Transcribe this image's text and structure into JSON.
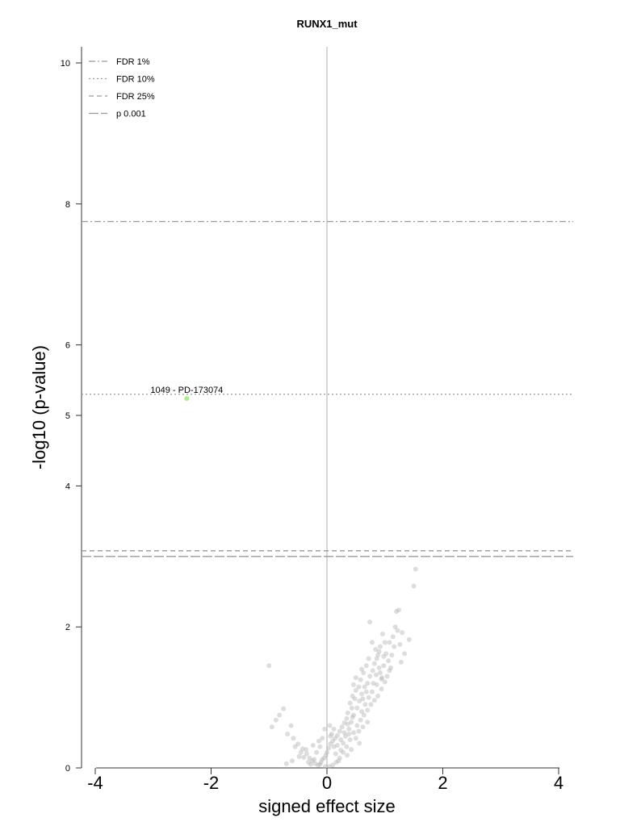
{
  "chart_data": {
    "type": "scatter",
    "title": "RUNX1_mut",
    "xlabel": "signed effect size",
    "ylabel": "-log10 (p-value)",
    "xlim": [
      -4.25,
      4.2
    ],
    "ylim": [
      0,
      10.2
    ],
    "x_ticks": [
      -4,
      -2,
      0,
      2,
      4
    ],
    "x_tick_labels": [
      "-4",
      "-2",
      "0",
      "2",
      "4"
    ],
    "y_ticks": [
      0,
      2,
      4,
      5,
      6,
      8,
      10
    ],
    "y_tick_labels": [
      "0",
      "2",
      "4",
      "5",
      "6",
      "8",
      "10"
    ],
    "reference_lines": [
      {
        "label": "FDR 1%",
        "y": 7.75,
        "style": "dashdot"
      },
      {
        "label": "FDR 10%",
        "y": 5.3,
        "style": "dotted"
      },
      {
        "label": "FDR 25%",
        "y": 3.08,
        "style": "dashed"
      },
      {
        "label": "p 0.001",
        "y": 3.0,
        "style": "longdash"
      }
    ],
    "vertical_line_x": 0,
    "legend_position": "top-left",
    "grid": false,
    "highlight": {
      "label": "1049 - PD-173074",
      "x": -2.42,
      "y": 5.24,
      "color": "#a6f08a"
    },
    "point_color": "#b4b4b4",
    "points": [
      [
        1.53,
        2.82
      ],
      [
        1.5,
        2.58
      ],
      [
        1.24,
        2.24
      ],
      [
        1.2,
        2.22
      ],
      [
        1.18,
        2.0
      ],
      [
        1.22,
        1.95
      ],
      [
        1.42,
        1.82
      ],
      [
        1.14,
        1.86
      ],
      [
        1.08,
        1.78
      ],
      [
        1.16,
        1.72
      ],
      [
        0.96,
        1.9
      ],
      [
        0.92,
        1.72
      ],
      [
        0.88,
        1.6
      ],
      [
        0.9,
        1.42
      ],
      [
        0.85,
        1.32
      ],
      [
        0.95,
        1.28
      ],
      [
        0.74,
        2.07
      ],
      [
        0.78,
        1.78
      ],
      [
        0.72,
        1.55
      ],
      [
        0.68,
        1.45
      ],
      [
        0.63,
        1.35
      ],
      [
        0.58,
        1.25
      ],
      [
        0.55,
        1.15
      ],
      [
        0.5,
        1.1
      ],
      [
        0.44,
        1.02
      ],
      [
        0.48,
        0.98
      ],
      [
        0.4,
        0.92
      ],
      [
        0.43,
        0.85
      ],
      [
        0.36,
        0.78
      ],
      [
        0.34,
        0.7
      ],
      [
        0.3,
        0.64
      ],
      [
        0.26,
        0.58
      ],
      [
        0.22,
        0.52
      ],
      [
        0.18,
        0.46
      ],
      [
        0.14,
        0.42
      ],
      [
        0.1,
        0.38
      ],
      [
        0.06,
        0.34
      ],
      [
        0.03,
        0.28
      ],
      [
        0.0,
        0.22
      ],
      [
        -0.02,
        0.18
      ],
      [
        -0.05,
        0.14
      ],
      [
        -0.08,
        0.12
      ],
      [
        -0.1,
        0.08
      ],
      [
        -0.12,
        0.05
      ],
      [
        -0.15,
        0.04
      ],
      [
        -0.2,
        0.06
      ],
      [
        -0.25,
        0.1
      ],
      [
        -0.3,
        0.14
      ],
      [
        -0.35,
        0.2
      ],
      [
        -0.42,
        0.27
      ],
      [
        -0.5,
        0.34
      ],
      [
        -0.58,
        0.42
      ],
      [
        -0.62,
        0.6
      ],
      [
        -0.75,
        0.84
      ],
      [
        -0.82,
        0.75
      ],
      [
        -0.68,
        0.48
      ],
      [
        -0.55,
        0.3
      ],
      [
        -0.45,
        0.22
      ],
      [
        -0.4,
        0.15
      ],
      [
        -0.32,
        0.08
      ],
      [
        -0.28,
        0.05
      ],
      [
        -0.22,
        0.12
      ],
      [
        -0.18,
        0.22
      ],
      [
        -0.12,
        0.3
      ],
      [
        -0.08,
        0.42
      ],
      [
        -0.04,
        0.55
      ],
      [
        0.05,
        0.6
      ],
      [
        0.08,
        0.48
      ],
      [
        0.12,
        0.3
      ],
      [
        0.15,
        0.2
      ],
      [
        0.2,
        0.1
      ],
      [
        0.24,
        0.25
      ],
      [
        0.28,
        0.35
      ],
      [
        0.32,
        0.45
      ],
      [
        0.38,
        0.55
      ],
      [
        0.42,
        0.65
      ],
      [
        0.46,
        0.75
      ],
      [
        0.52,
        0.85
      ],
      [
        0.56,
        0.95
      ],
      [
        0.6,
        1.05
      ],
      [
        0.65,
        1.15
      ],
      [
        0.7,
        1.2
      ],
      [
        0.74,
        1.3
      ],
      [
        0.79,
        1.38
      ],
      [
        0.82,
        1.48
      ],
      [
        0.86,
        1.55
      ],
      [
        0.9,
        1.65
      ],
      [
        0.98,
        1.58
      ],
      [
        1.02,
        1.62
      ],
      [
        1.06,
        1.52
      ],
      [
        1.1,
        1.42
      ],
      [
        1.04,
        1.3
      ],
      [
        1.0,
        1.22
      ],
      [
        0.94,
        1.12
      ],
      [
        0.88,
        1.02
      ],
      [
        0.82,
        0.96
      ],
      [
        0.76,
        0.9
      ],
      [
        0.7,
        0.82
      ],
      [
        0.64,
        0.75
      ],
      [
        0.58,
        0.68
      ],
      [
        0.52,
        0.6
      ],
      [
        0.46,
        0.5
      ],
      [
        0.4,
        0.4
      ],
      [
        0.34,
        0.3
      ],
      [
        0.28,
        0.22
      ],
      [
        0.22,
        0.14
      ],
      [
        0.16,
        0.08
      ],
      [
        0.1,
        0.04
      ],
      [
        0.04,
        0.02
      ],
      [
        -0.03,
        0.02
      ],
      [
        0.3,
        0.5
      ],
      [
        0.36,
        0.62
      ],
      [
        0.24,
        0.4
      ],
      [
        0.18,
        0.32
      ],
      [
        0.44,
        0.72
      ],
      [
        0.62,
        0.98
      ],
      [
        0.68,
        1.08
      ],
      [
        0.8,
        1.2
      ],
      [
        0.92,
        1.35
      ],
      [
        0.98,
        1.45
      ],
      [
        1.12,
        1.6
      ],
      [
        1.26,
        1.75
      ],
      [
        1.3,
        1.92
      ],
      [
        1.34,
        1.62
      ],
      [
        1.28,
        1.5
      ],
      [
        1.0,
        1.78
      ],
      [
        0.84,
        1.68
      ],
      [
        0.6,
        1.4
      ],
      [
        0.5,
        1.28
      ],
      [
        0.46,
        1.18
      ],
      [
        0.55,
        0.52
      ],
      [
        0.62,
        0.58
      ],
      [
        0.7,
        0.65
      ],
      [
        0.35,
        0.18
      ],
      [
        0.42,
        0.26
      ],
      [
        0.12,
        0.55
      ],
      [
        0.06,
        0.45
      ],
      [
        -0.14,
        0.38
      ],
      [
        -0.24,
        0.32
      ],
      [
        -0.36,
        0.26
      ],
      [
        -0.48,
        0.16
      ],
      [
        -0.6,
        0.1
      ],
      [
        -0.7,
        0.06
      ],
      [
        -0.88,
        0.68
      ],
      [
        -0.95,
        0.58
      ],
      [
        0.6,
        0.8
      ],
      [
        0.66,
        0.9
      ],
      [
        0.72,
        1.0
      ],
      [
        0.78,
        1.08
      ],
      [
        0.86,
        1.18
      ],
      [
        0.94,
        1.26
      ],
      [
        1.08,
        1.38
      ],
      [
        0.5,
        0.42
      ],
      [
        0.56,
        0.35
      ],
      [
        0.38,
        0.48
      ],
      [
        -1.0,
        1.45
      ]
    ]
  }
}
